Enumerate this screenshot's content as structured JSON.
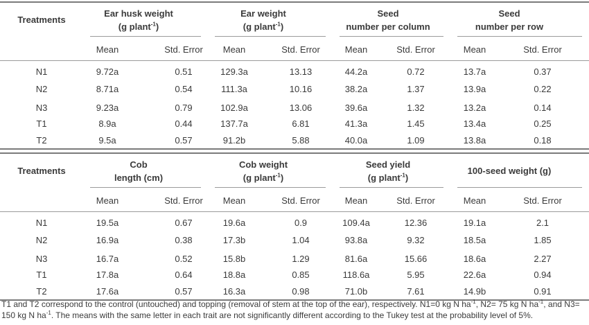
{
  "tables": [
    {
      "row_header": "Treatments",
      "groups": [
        {
          "title": "Ear husk weight",
          "subtitle_prefix": "(g plant",
          "sup": "-1",
          "subtitle_suffix": ")"
        },
        {
          "title": "Ear weight",
          "subtitle_prefix": "(g plant",
          "sup": "-1",
          "subtitle_suffix": ")"
        },
        {
          "title": "Seed",
          "subtitle_prefix": "number per column",
          "sup": "",
          "subtitle_suffix": ""
        },
        {
          "title": "Seed",
          "subtitle_prefix": "number per row",
          "sup": "",
          "subtitle_suffix": ""
        }
      ],
      "subheaders": [
        "Mean",
        "Std. Error",
        "Mean",
        "Std. Error",
        "Mean",
        "Std. Error",
        "Mean",
        "Std. Error"
      ],
      "rows": [
        {
          "label": "N1",
          "values": [
            "9.72a",
            "0.51",
            "129.3a",
            "13.13",
            "44.2a",
            "0.72",
            "13.7a",
            "0.37"
          ]
        },
        {
          "label": "N2",
          "values": [
            "8.71a",
            "0.54",
            "111.3a",
            "10.16",
            "38.2a",
            "1.37",
            "13.9a",
            "0.22"
          ]
        },
        {
          "label": "N3",
          "values": [
            "9.23a",
            "0.79",
            "102.9a",
            "13.06",
            "39.6a",
            "1.32",
            "13.2a",
            "0.14"
          ]
        },
        {
          "label": "T1",
          "values": [
            "8.9a",
            "0.44",
            "137.7a",
            "6.81",
            "41.3a",
            "1.45",
            "13.4a",
            "0.25"
          ]
        },
        {
          "label": "T2",
          "values": [
            "9.5a",
            "0.57",
            "91.2b",
            "5.88",
            "40.0a",
            "1.09",
            "13.8a",
            "0.18"
          ]
        }
      ]
    },
    {
      "row_header": "Treatments",
      "groups": [
        {
          "title": "Cob",
          "subtitle_prefix": "length (cm)",
          "sup": "",
          "subtitle_suffix": ""
        },
        {
          "title": "Cob weight",
          "subtitle_prefix": "(g plant",
          "sup": "-1",
          "subtitle_suffix": ")"
        },
        {
          "title": "Seed yield",
          "subtitle_prefix": "(g plant",
          "sup": "-1",
          "subtitle_suffix": ")"
        },
        {
          "title": "100-seed weight (g)",
          "subtitle_prefix": "",
          "sup": "",
          "subtitle_suffix": ""
        }
      ],
      "subheaders": [
        "Mean",
        "Std. Error",
        "Mean",
        "Std. Error",
        "Mean",
        "Std. Error",
        "Mean",
        "Std. Error"
      ],
      "rows": [
        {
          "label": "N1",
          "values": [
            "19.5a",
            "0.67",
            "19.6a",
            "0.9",
            "109.4a",
            "12.36",
            "19.1a",
            "2.1"
          ]
        },
        {
          "label": "N2",
          "values": [
            "16.9a",
            "0.38",
            "17.3b",
            "1.04",
            "93.8a",
            "9.32",
            "18.5a",
            "1.85"
          ]
        },
        {
          "label": "N3",
          "values": [
            "16.7a",
            "0.52",
            "15.8b",
            "1.29",
            "81.6a",
            "15.66",
            "18.6a",
            "2.27"
          ]
        },
        {
          "label": "T1",
          "values": [
            "17.8a",
            "0.64",
            "18.8a",
            "0.85",
            "118.6a",
            "5.95",
            "22.6a",
            "0.94"
          ]
        },
        {
          "label": "T2",
          "values": [
            "17.6a",
            "0.57",
            "16.3a",
            "0.98",
            "71.0b",
            "7.61",
            "14.9b",
            "0.91"
          ]
        }
      ]
    }
  ],
  "footnote": {
    "part1": "T1 and T2 correspond to the control (untouched) and topping (removal of stem at the top of the ear), respectively. N1=0 kg N ha",
    "sup1": "-1",
    "part2": ", N2= 75 kg N ha",
    "sup2": "-1",
    "part3": ", and N3= 150 kg N ha",
    "sup3": "-1",
    "part4": ". The means with the same letter in each trait are not significantly different according to the Tukey test at the probability level of 5%."
  }
}
